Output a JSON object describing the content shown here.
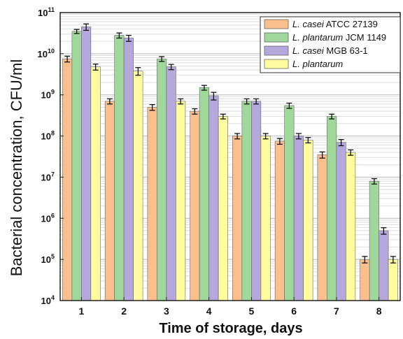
{
  "chart_data": {
    "type": "bar",
    "xlabel": "Time of storage, days",
    "ylabel": "Bacterial concentration, CFU/ml",
    "yscale": "log",
    "ylim": [
      10000,
      100000000000
    ],
    "y_ticks": [
      {
        "base": "10",
        "exp": "4"
      },
      {
        "base": "10",
        "exp": "5"
      },
      {
        "base": "10",
        "exp": "6"
      },
      {
        "base": "10",
        "exp": "7"
      },
      {
        "base": "10",
        "exp": "8"
      },
      {
        "base": "10",
        "exp": "9"
      },
      {
        "base": "10",
        "exp": "10"
      },
      {
        "base": "10",
        "exp": "11"
      }
    ],
    "grid": true,
    "legend_position": "top-right",
    "categories": [
      "1",
      "2",
      "3",
      "4",
      "5",
      "6",
      "7",
      "8"
    ],
    "series": [
      {
        "name_italic": "L. casei",
        "name_rest": " ATCC 27139",
        "color": "#f9c08d",
        "values": [
          7500000000.0,
          700000000.0,
          500000000.0,
          400000000.0,
          100000000.0,
          75000000.0,
          35000000.0,
          100000.0
        ],
        "errors": [
          1200000000.0,
          100000000.0,
          80000000.0,
          60000000.0,
          15000000.0,
          12000000.0,
          6000000.0,
          18000.0
        ]
      },
      {
        "name_italic": "L. plantarum",
        "name_rest": " JCM 1149",
        "color": "#9fd89a",
        "values": [
          35000000000.0,
          28000000000.0,
          7500000000.0,
          1500000000.0,
          700000000.0,
          550000000.0,
          300000000.0,
          8000000.0
        ],
        "errors": [
          4000000000.0,
          4000000000.0,
          1000000000.0,
          200000000.0,
          100000000.0,
          80000000.0,
          40000000.0,
          1200000.0
        ]
      },
      {
        "name_italic": "L. casei",
        "name_rest": " MGB 63-1",
        "color": "#b5a8dc",
        "values": [
          45000000000.0,
          24000000000.0,
          4800000000.0,
          950000000.0,
          700000000.0,
          100000000.0,
          70000000.0,
          500000.0
        ],
        "errors": [
          8000000000.0,
          4000000000.0,
          700000000.0,
          200000000.0,
          100000000.0,
          15000000.0,
          12000000.0,
          90000.0
        ]
      },
      {
        "name_italic": "L. plantarum",
        "name_rest": "",
        "color": "#fdfda0",
        "values": [
          4800000000.0,
          3800000000.0,
          700000000.0,
          300000000.0,
          100000000.0,
          80000000.0,
          40000000.0,
          100000.0
        ],
        "errors": [
          800000000.0,
          800000000.0,
          100000000.0,
          40000000.0,
          15000000.0,
          12000000.0,
          6000000.0,
          18000.0
        ]
      }
    ]
  }
}
